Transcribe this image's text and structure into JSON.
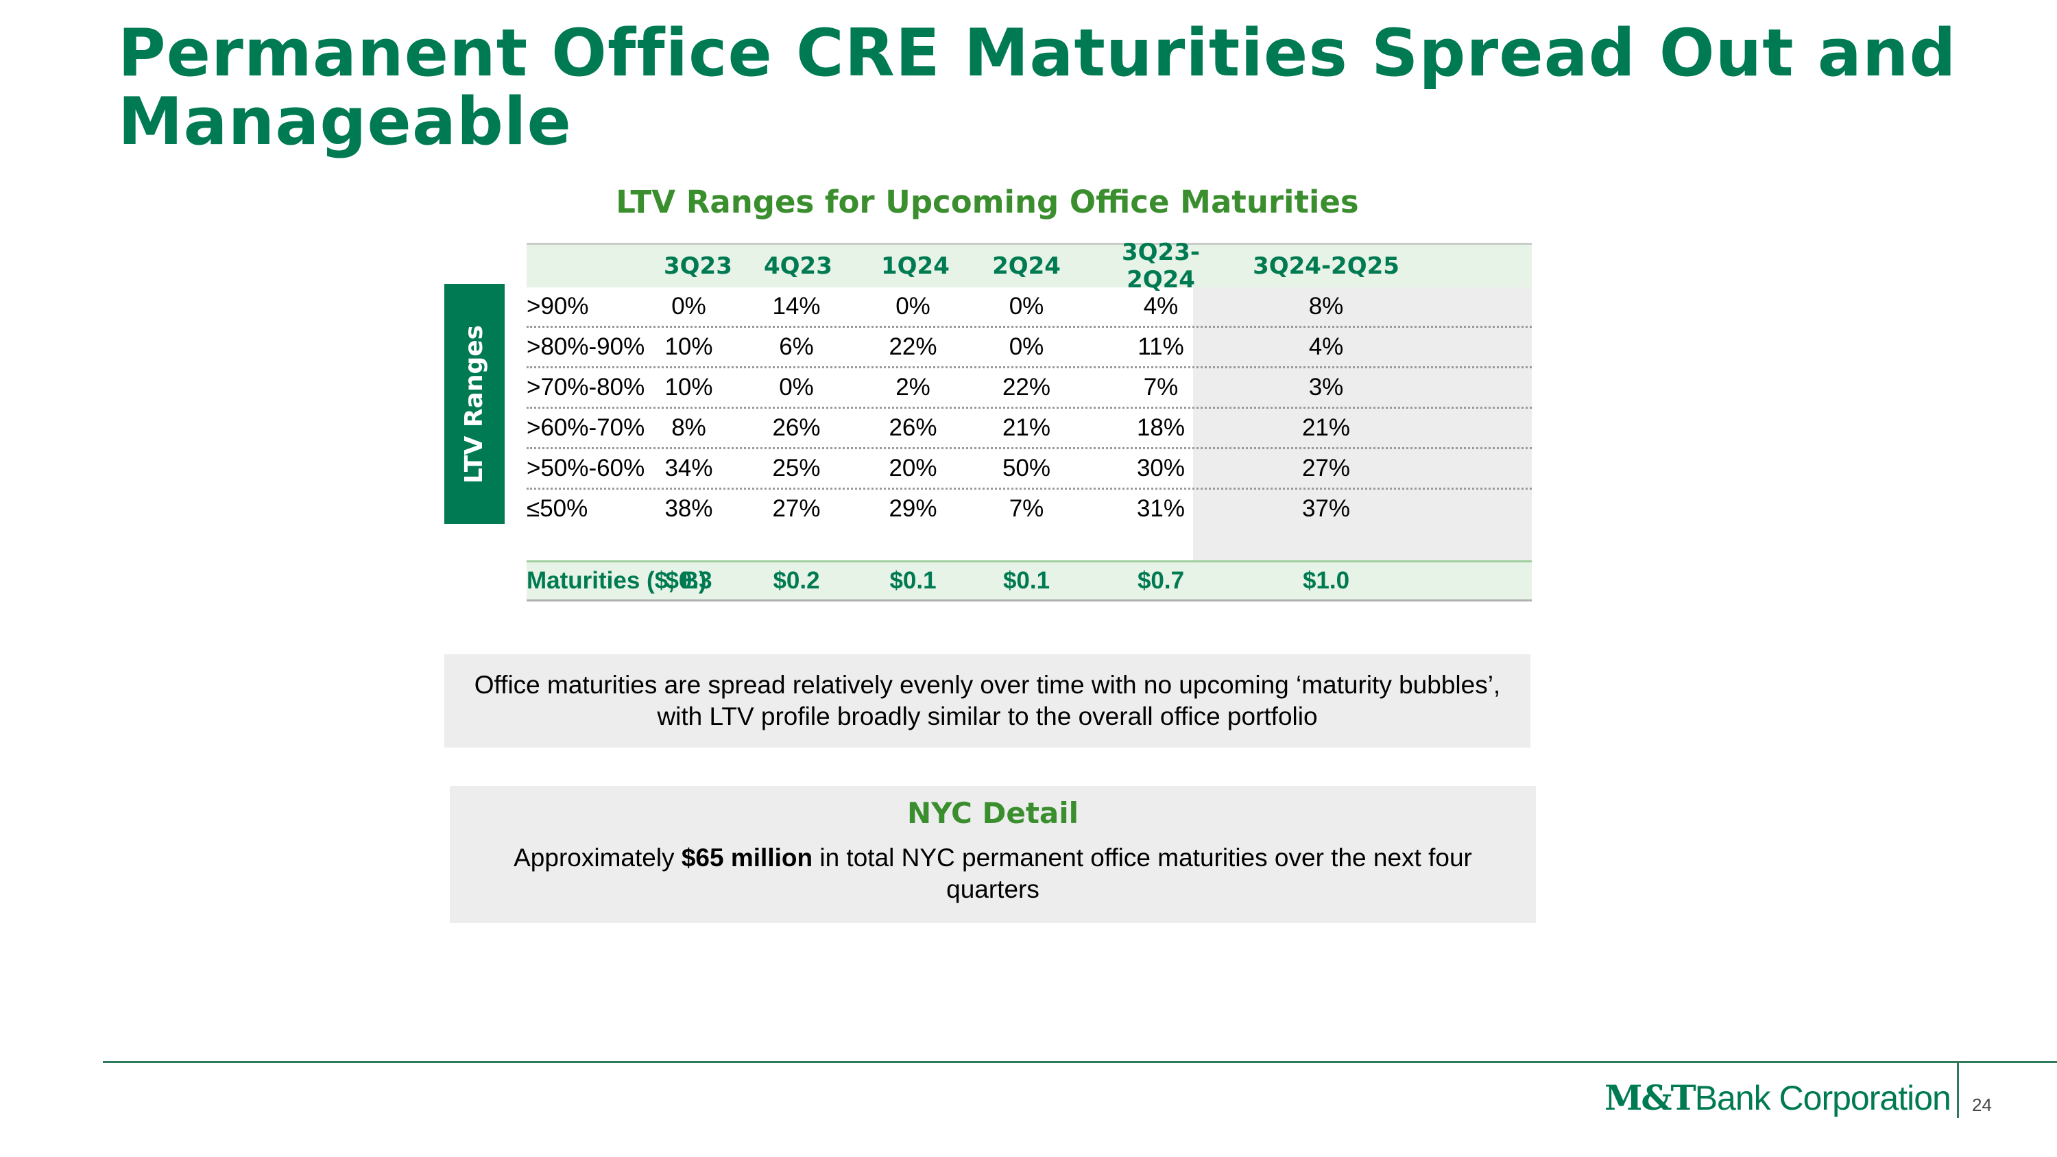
{
  "slide": {
    "title": "Permanent Office CRE Maturities Spread Out and Manageable",
    "page_number": "24"
  },
  "table": {
    "heading": "LTV Ranges for Upcoming Office Maturities",
    "side_label": "LTV Ranges",
    "columns": [
      "3Q23",
      "4Q23",
      "1Q24",
      "2Q24",
      "3Q23-2Q24",
      "3Q24-2Q25"
    ],
    "rows": [
      {
        "label": ">90%",
        "values": [
          "0%",
          "14%",
          "0%",
          "0%",
          "4%",
          "8%"
        ]
      },
      {
        "label": ">80%-90%",
        "values": [
          "10%",
          "6%",
          "22%",
          "0%",
          "11%",
          "4%"
        ]
      },
      {
        "label": ">70%-80%",
        "values": [
          "10%",
          "0%",
          "2%",
          "22%",
          "7%",
          "3%"
        ]
      },
      {
        "label": ">60%-70%",
        "values": [
          "8%",
          "26%",
          "26%",
          "21%",
          "18%",
          "21%"
        ]
      },
      {
        "label": ">50%-60%",
        "values": [
          "34%",
          "25%",
          "20%",
          "50%",
          "30%",
          "27%"
        ]
      },
      {
        "label": "≤50%",
        "values": [
          "38%",
          "27%",
          "29%",
          "7%",
          "31%",
          "37%"
        ]
      }
    ],
    "maturities": {
      "label": "Maturities ($, B)",
      "values": [
        "$0.3",
        "$0.2",
        "$0.1",
        "$0.1",
        "$0.7",
        "$1.0"
      ]
    }
  },
  "callout": {
    "line1": "Office maturities are spread relatively evenly over time with no upcoming ‘maturity bubbles’,",
    "line2": "with LTV profile broadly similar to the overall office portfolio"
  },
  "nyc": {
    "title": "NYC Detail",
    "prefix": "Approximately ",
    "amount": "$65 million",
    "suffix": " in total NYC permanent office maturities over the next four quarters"
  },
  "logo": {
    "mark": "M&T",
    "name": "Bank Corporation"
  },
  "colors": {
    "primary_green": "#007a52",
    "accent_green": "#3a8e2e",
    "header_fill": "#e6f3e6",
    "panel_gray": "#ededee"
  }
}
